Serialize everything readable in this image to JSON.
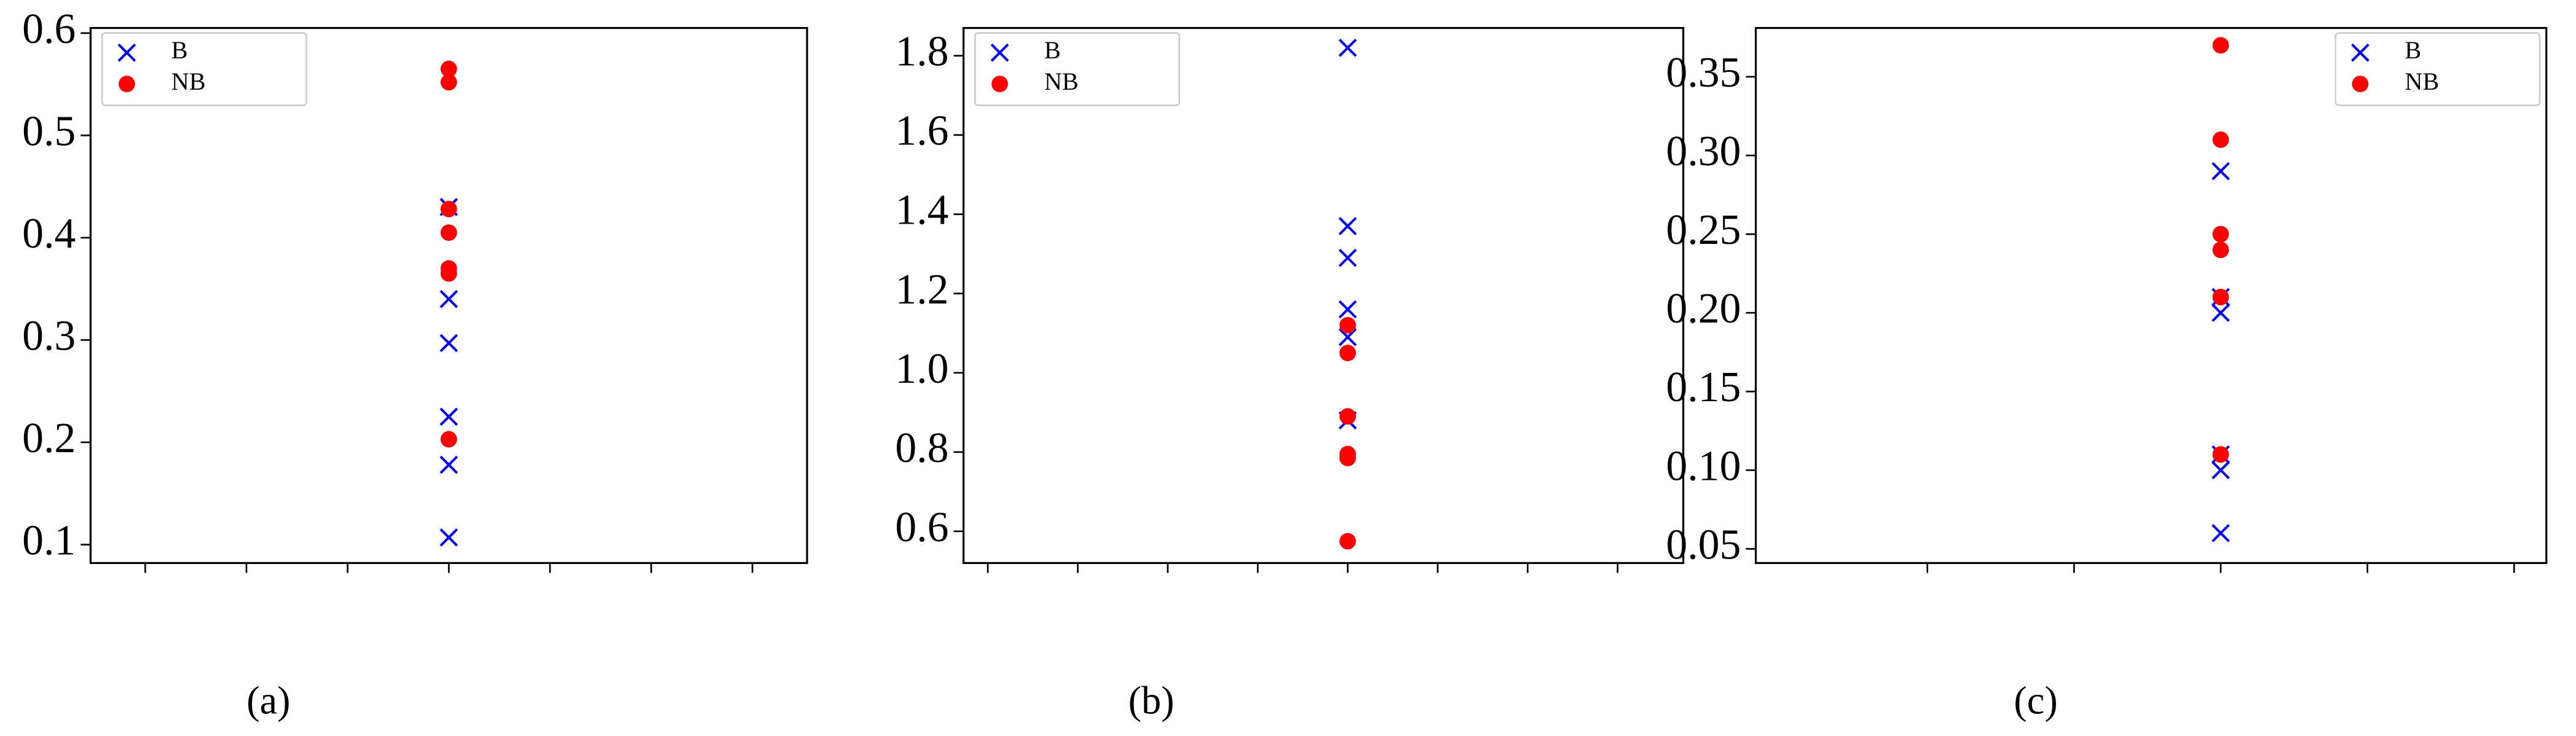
{
  "chart_data": [
    {
      "type": "scatter",
      "caption": "(a)",
      "legend": "upper left",
      "xlim": [
        -0.54,
        6.54
      ],
      "xticks": [
        0,
        1,
        2,
        3,
        4,
        5,
        6
      ],
      "ylim": [
        0.082,
        0.605
      ],
      "yticks": [
        0.1,
        0.2,
        0.3,
        0.4,
        0.5,
        0.6
      ],
      "series": [
        {
          "name": "B",
          "color": "#0000ff",
          "marker": "x",
          "x": [
            3,
            3,
            3,
            3,
            3,
            3
          ],
          "values": [
            0.43,
            0.34,
            0.297,
            0.225,
            0.178,
            0.107
          ]
        },
        {
          "name": "NB",
          "color": "#ff0000",
          "marker": "o",
          "x": [
            3,
            3,
            3,
            3,
            3,
            3,
            3
          ],
          "values": [
            0.565,
            0.552,
            0.428,
            0.405,
            0.37,
            0.365,
            0.203
          ]
        }
      ]
    },
    {
      "type": "scatter",
      "caption": "(b)",
      "legend": "upper left",
      "xlim": [
        -0.27,
        7.73
      ],
      "xticks": [
        0,
        1,
        2,
        3,
        4,
        5,
        6,
        7
      ],
      "ylim": [
        0.52,
        1.87
      ],
      "yticks": [
        0.6,
        0.8,
        {
          "value": 1,
          "label": "1.0"
        },
        1.2,
        1.4,
        1.6,
        1.8
      ],
      "series": [
        {
          "name": "B",
          "color": "#0000ff",
          "marker": "x",
          "x": [
            4,
            4,
            4,
            4,
            4,
            4
          ],
          "values": [
            1.82,
            1.37,
            1.29,
            1.16,
            1.09,
            0.88
          ]
        },
        {
          "name": "NB",
          "color": "#ff0000",
          "marker": "o",
          "x": [
            4,
            4,
            4,
            4,
            4,
            4
          ],
          "values": [
            1.12,
            1.05,
            0.89,
            0.795,
            0.785,
            0.575
          ]
        }
      ]
    },
    {
      "type": "scatter",
      "caption": "(c)",
      "legend": "upper right",
      "xlim": [
        -1.17,
        4.22
      ],
      "xticks": [
        0,
        1,
        2,
        3,
        4
      ],
      "ylim": [
        0.041,
        0.381
      ],
      "yticks": [
        0.05,
        {
          "value": 0.1,
          "label": "0.10"
        },
        0.15,
        {
          "value": 0.2,
          "label": "0.20"
        },
        0.25,
        {
          "value": 0.3,
          "label": "0.30"
        },
        0.35
      ],
      "series": [
        {
          "name": "B",
          "color": "#0000ff",
          "marker": "x",
          "x": [
            2,
            2,
            2,
            2,
            2,
            2
          ],
          "values": [
            0.29,
            0.21,
            0.2,
            0.11,
            0.1,
            0.06
          ]
        },
        {
          "name": "NB",
          "color": "#ff0000",
          "marker": "o",
          "x": [
            2,
            2,
            2,
            2,
            2,
            2
          ],
          "values": [
            0.37,
            0.31,
            0.25,
            0.24,
            0.21,
            0.11
          ]
        }
      ]
    }
  ]
}
